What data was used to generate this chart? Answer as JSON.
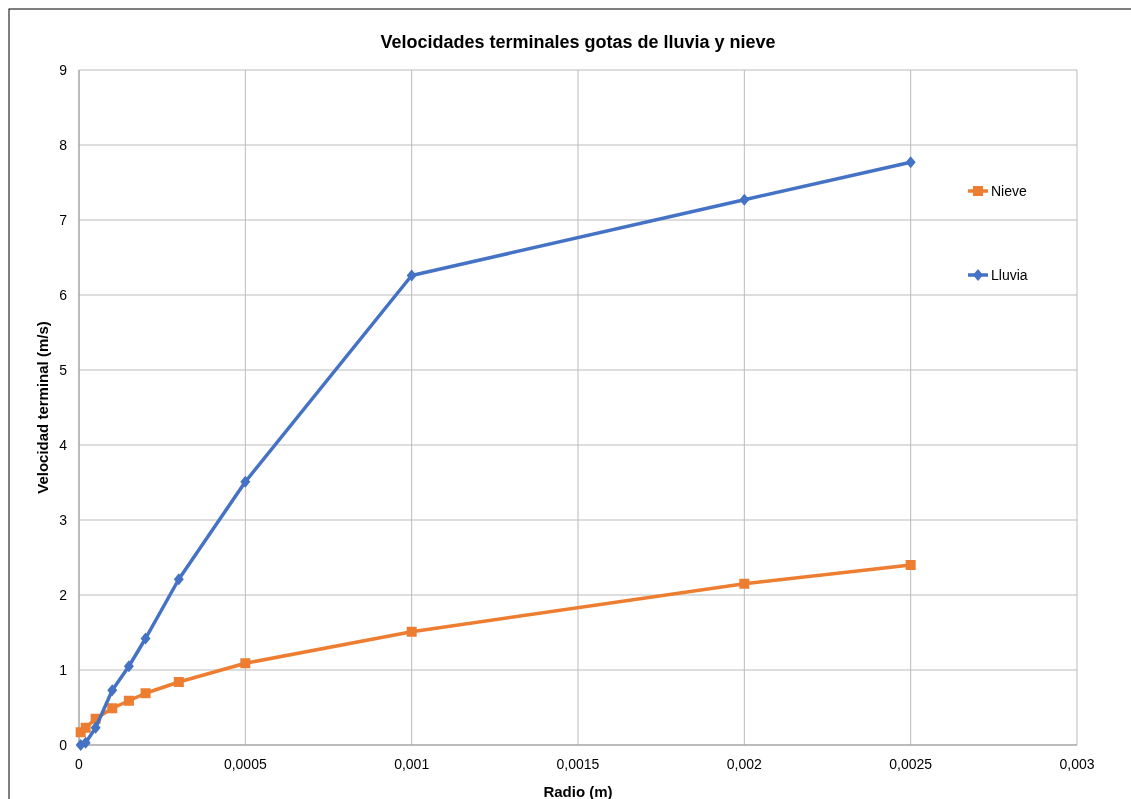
{
  "chart_data": {
    "type": "line",
    "title": "Velocidades terminales gotas de lluvia y nieve",
    "xlabel": "Radio (m)",
    "ylabel": "Velocidad terminal (m/s)",
    "x": [
      5e-06,
      2e-05,
      5e-05,
      0.0001,
      0.00015,
      0.0002,
      0.0003,
      0.0005,
      0.001,
      0.002,
      0.0025
    ],
    "series": [
      {
        "name": "Nieve",
        "color": "#ed7d31",
        "marker": "square",
        "values": [
          0.17,
          0.23,
          0.35,
          0.49,
          0.59,
          0.69,
          0.84,
          1.09,
          1.51,
          2.15,
          2.4
        ]
      },
      {
        "name": "Lluvia",
        "color": "#4472c4",
        "marker": "diamond",
        "values": [
          0,
          0.03,
          0.23,
          0.73,
          1.05,
          1.42,
          2.21,
          3.51,
          6.26,
          7.27,
          7.77
        ]
      }
    ],
    "xlim": [
      0,
      0.003
    ],
    "xticks": [
      0,
      {
        "value": 0.0005,
        "label": "0,0005"
      },
      {
        "value": 0.001,
        "label": "0,001"
      },
      {
        "value": 0.0015,
        "label": "0,0015"
      },
      {
        "value": 0.002,
        "label": "0,002"
      },
      {
        "value": 0.0025,
        "label": "0,0025"
      },
      {
        "value": 0.003,
        "label": "0,003"
      }
    ],
    "ylim": [
      0,
      9
    ],
    "yticks": [
      0,
      1,
      2,
      3,
      4,
      5,
      6,
      7,
      8,
      9
    ],
    "grid": true,
    "legend": "right",
    "line_style": "solid"
  }
}
